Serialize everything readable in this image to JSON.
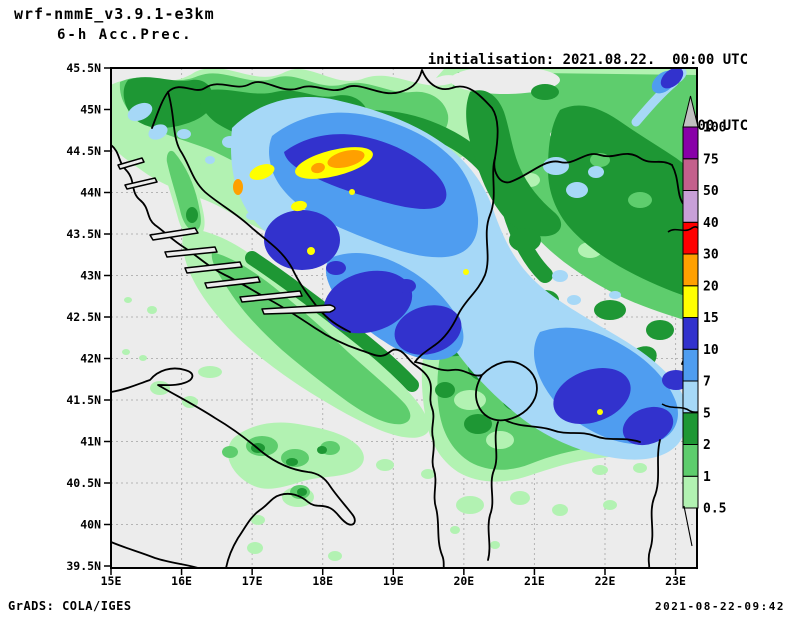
{
  "header": {
    "model": "wrf-nmmE_v3.9.1-e3km",
    "product": "6-h Acc.Prec.",
    "init_line": "initialisation: 2021.08.22.  00:00 UTC",
    "valid_line": "valld(+85h): 2021.AUG.25 13:00 UTC"
  },
  "footer": {
    "left": "GrADS: COLA/IGES",
    "right": "2021-08-22-09:42"
  },
  "axes": {
    "lat_labels": [
      "45.5N",
      "45N",
      "44.5N",
      "44N",
      "43.5N",
      "43N",
      "42.5N",
      "42N",
      "41.5N",
      "41N",
      "40.5N",
      "40N",
      "39.5N"
    ],
    "lon_labels": [
      "15E",
      "16E",
      "17E",
      "18E",
      "19E",
      "20E",
      "21E",
      "22E",
      "23E"
    ]
  },
  "colorbar": {
    "levels": [
      "0.5",
      "1",
      "2",
      "5",
      "7",
      "10",
      "15",
      "20",
      "30",
      "40",
      "50",
      "75",
      "100"
    ],
    "colors": [
      "#b2f2b2",
      "#5ecd6d",
      "#1e9734",
      "#a6d8f7",
      "#4f9df0",
      "#3232cd",
      "#ffff00",
      "#ffa000",
      "#ff0000",
      "#c8a0d8",
      "#c4608c",
      "#8800a8"
    ],
    "over_color": "#c0c0c0"
  },
  "palette": {
    "bg": "#ececec",
    "grid": "#b4b4b4",
    "green1": "#b2f2b2",
    "green2": "#5ecd6d",
    "green3": "#1e9734",
    "blue1": "#a6d8f7",
    "blue2": "#4f9df0",
    "blue3": "#3232cd",
    "yellow": "#ffff00",
    "orange": "#ffa000",
    "red": "#ff0000",
    "lavender": "#c8a0d8",
    "pink": "#c4608c",
    "purple": "#8800a8",
    "border": "#000000"
  },
  "chart_data": {
    "type": "map-filled-contour",
    "title": "wrf-nmmE_v3.9.1-e3km 6-h Acc.Prec.",
    "lon_ticks": [
      "15E",
      "16E",
      "17E",
      "18E",
      "19E",
      "20E",
      "21E",
      "22E",
      "23E"
    ],
    "lat_ticks": [
      "39.5N",
      "40N",
      "40.5N",
      "41N",
      "41.5N",
      "42N",
      "42.5N",
      "43N",
      "43.5N",
      "44N",
      "44.5N",
      "45N",
      "45.5N"
    ],
    "shade_levels": [
      0.5,
      1,
      2,
      5,
      7,
      10,
      15,
      20,
      30,
      40,
      50,
      75,
      100
    ],
    "shade_colors": [
      "#b2f2b2",
      "#5ecd6d",
      "#1e9734",
      "#a6d8f7",
      "#4f9df0",
      "#3232cd",
      "#ffff00",
      "#ffa000",
      "#ff0000",
      "#c8a0d8",
      "#c4608c",
      "#8800a8"
    ],
    "over_color": "#c0c0c0",
    "legend_position": "right"
  }
}
